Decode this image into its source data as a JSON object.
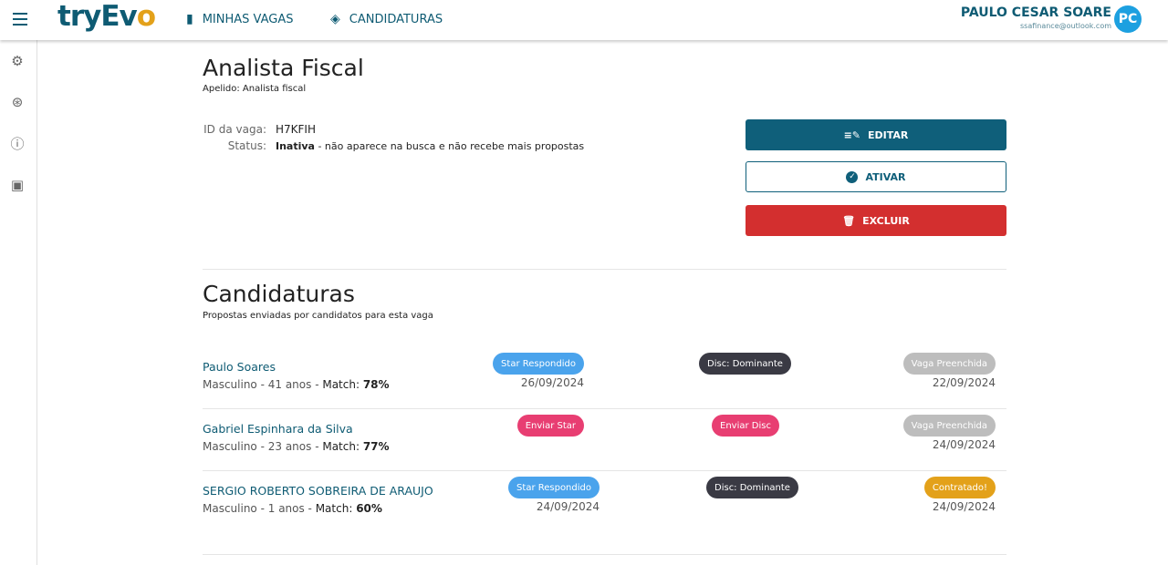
{
  "header": {
    "logo": "tryEvo",
    "nav": [
      {
        "label": "MINHAS VAGAS",
        "icon": "bookmark-icon"
      },
      {
        "label": "CANDIDATURAS",
        "icon": "handshake-icon"
      }
    ],
    "user_name": "PAULO CESAR SOARE",
    "user_email": "ssafinance@outlook.com",
    "avatar": "PC"
  },
  "sidebar": [
    "gear-icon",
    "support-icon",
    "info-icon",
    "money-icon"
  ],
  "job": {
    "title": "Analista Fiscal",
    "apelido": "Apelido: Analista fiscal",
    "id_label": "ID da vaga:",
    "id": "H7KFIH",
    "status_label": "Status:",
    "status_bold": "Inativa",
    "status_text": " - não aparece na busca e não recebe mais propostas"
  },
  "actions": {
    "edit": "EDITAR",
    "activate": "ATIVAR",
    "delete": "EXCLUIR"
  },
  "candidaturas": {
    "title": "Candidaturas",
    "subtitle": "Propostas enviadas por candidatos para esta vaga",
    "rows": [
      {
        "name": "Paulo Soares",
        "gender": "Masculino",
        "age": " - 41 anos - ",
        "match_label": "Match: ",
        "match": "78%",
        "star": "Star Respondido",
        "star_color": "#4aa3ec",
        "star_date": "26/09/2024",
        "disc": "Disc: Dominante",
        "disc_color": "#3a3a44",
        "status": "Vaga Preenchida",
        "status_color": "#bdbdbd",
        "status_date": "22/09/2024"
      },
      {
        "name": "Gabriel Espinhara da Silva",
        "gender": "Masculino",
        "age": " - 23 anos - ",
        "match_label": "Match: ",
        "match": "77%",
        "star": "Enviar Star",
        "star_color": "#e83e72",
        "star_date": "",
        "disc": "Enviar Disc",
        "disc_color": "#e83e72",
        "status": "Vaga Preenchida",
        "status_color": "#bdbdbd",
        "status_date": "24/09/2024"
      },
      {
        "name": "SERGIO ROBERTO SOBREIRA DE ARAUJO",
        "gender": "Masculino",
        "age": " - 1 anos - ",
        "match_label": "Match: ",
        "match": "60%",
        "star": "Star Respondido",
        "star_color": "#4aa3ec",
        "star_date": "24/09/2024",
        "disc": "Disc: Dominante",
        "disc_color": "#3a3a44",
        "status": "Contratado!",
        "status_color": "#e3a11a",
        "status_date": "24/09/2024"
      }
    ]
  }
}
